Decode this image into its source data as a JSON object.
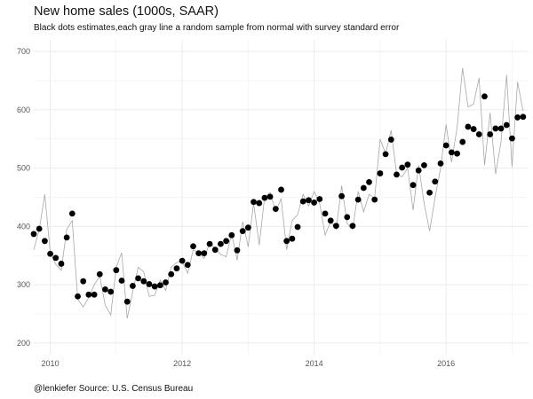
{
  "chart_data": {
    "type": "scatter",
    "title": "New home sales (1000s, SAAR)",
    "subtitle": "Black dots estimates,each gray line a random sample from normal with survey standard error",
    "caption": "@lenkiefer Source: U.S. Census Bureau",
    "xlabel": "",
    "ylabel": "",
    "xlim": [
      2009.75,
      2017.25
    ],
    "ylim": [
      180,
      720
    ],
    "x_ticks": [
      2010,
      2012,
      2014,
      2016
    ],
    "y_ticks": [
      200,
      300,
      400,
      500,
      600,
      700
    ],
    "grid": true,
    "legend": "none",
    "colors": {
      "dots": "#000000",
      "sample_line": "#a8a8a8",
      "grid": "#ebebeb"
    },
    "series": [
      {
        "x": [
          2009.75,
          2009.833,
          2009.917,
          2010.0,
          2010.083,
          2010.167,
          2010.25,
          2010.333,
          2010.417,
          2010.5,
          2010.583,
          2010.667,
          2010.75,
          2010.833,
          2010.917,
          2011.0,
          2011.083,
          2011.167,
          2011.25,
          2011.333,
          2011.417,
          2011.5,
          2011.583,
          2011.667,
          2011.75,
          2011.833,
          2011.917,
          2012.0,
          2012.083,
          2012.167,
          2012.25,
          2012.333,
          2012.417,
          2012.5,
          2012.583,
          2012.667,
          2012.75,
          2012.833,
          2012.917,
          2013.0,
          2013.083,
          2013.167,
          2013.25,
          2013.333,
          2013.417,
          2013.5,
          2013.583,
          2013.667,
          2013.75,
          2013.833,
          2013.917,
          2014.0,
          2014.083,
          2014.167,
          2014.25,
          2014.333,
          2014.417,
          2014.5,
          2014.583,
          2014.667,
          2014.75,
          2014.833,
          2014.917,
          2015.0,
          2015.083,
          2015.167,
          2015.25,
          2015.333,
          2015.417,
          2015.5,
          2015.583,
          2015.667,
          2015.75,
          2015.833,
          2015.917,
          2016.0,
          2016.083,
          2016.167,
          2016.25,
          2016.333,
          2016.417,
          2016.5,
          2016.583,
          2016.667,
          2016.75,
          2016.833,
          2016.917,
          2017.0,
          2017.083,
          2017.167
        ],
        "values": [
          387,
          396,
          375,
          353,
          346,
          336,
          381,
          422,
          280,
          306,
          283,
          283,
          318,
          292,
          288,
          325,
          307,
          271,
          298,
          311,
          306,
          301,
          297,
          299,
          304,
          318,
          328,
          341,
          334,
          366,
          354,
          354,
          370,
          360,
          370,
          375,
          385,
          359,
          392,
          398,
          442,
          440,
          449,
          451,
          430,
          463,
          375,
          379,
          399,
          443,
          445,
          441,
          447,
          422,
          410,
          401,
          452,
          416,
          401,
          446,
          466,
          476,
          446,
          491,
          524,
          549,
          489,
          501,
          506,
          471,
          496,
          505,
          458,
          477,
          508,
          539,
          527,
          525,
          545,
          571,
          567,
          558,
          623,
          558,
          568,
          568,
          574,
          551,
          587,
          588
        ]
      },
      {
        "x": [
          2009.75,
          2009.833,
          2009.917,
          2010.0,
          2010.083,
          2010.167,
          2010.25,
          2010.333,
          2010.417,
          2010.5,
          2010.583,
          2010.667,
          2010.75,
          2010.833,
          2010.917,
          2011.0,
          2011.083,
          2011.167,
          2011.25,
          2011.333,
          2011.417,
          2011.5,
          2011.583,
          2011.667,
          2011.75,
          2011.833,
          2011.917,
          2012.0,
          2012.083,
          2012.167,
          2012.25,
          2012.333,
          2012.417,
          2012.5,
          2012.583,
          2012.667,
          2012.75,
          2012.833,
          2012.917,
          2013.0,
          2013.083,
          2013.167,
          2013.25,
          2013.333,
          2013.417,
          2013.5,
          2013.583,
          2013.667,
          2013.75,
          2013.833,
          2013.917,
          2014.0,
          2014.083,
          2014.167,
          2014.25,
          2014.333,
          2014.417,
          2014.5,
          2014.583,
          2014.667,
          2014.75,
          2014.833,
          2014.917,
          2015.0,
          2015.083,
          2015.167,
          2015.25,
          2015.333,
          2015.417,
          2015.5,
          2015.583,
          2015.667,
          2015.75,
          2015.833,
          2015.917,
          2016.0,
          2016.083,
          2016.167,
          2016.25,
          2016.333,
          2016.417,
          2016.5,
          2016.583,
          2016.667,
          2016.75,
          2016.833,
          2016.917,
          2017.0,
          2017.083,
          2017.167
        ],
        "values": [
          360,
          395,
          455,
          355,
          335,
          325,
          395,
          410,
          275,
          262,
          278,
          300,
          315,
          265,
          248,
          330,
          355,
          242,
          288,
          330,
          322,
          280,
          282,
          308,
          290,
          330,
          338,
          340,
          320,
          360,
          355,
          345,
          372,
          362,
          352,
          348,
          388,
          342,
          408,
          365,
          440,
          368,
          450,
          458,
          425,
          448,
          360,
          410,
          420,
          455,
          435,
          460,
          440,
          385,
          408,
          395,
          470,
          405,
          395,
          460,
          425,
          455,
          448,
          550,
          525,
          565,
          490,
          485,
          500,
          428,
          505,
          440,
          392,
          450,
          500,
          575,
          510,
          570,
          672,
          605,
          610,
          655,
          505,
          595,
          490,
          545,
          660,
          502,
          648,
          598
        ]
      }
    ]
  }
}
